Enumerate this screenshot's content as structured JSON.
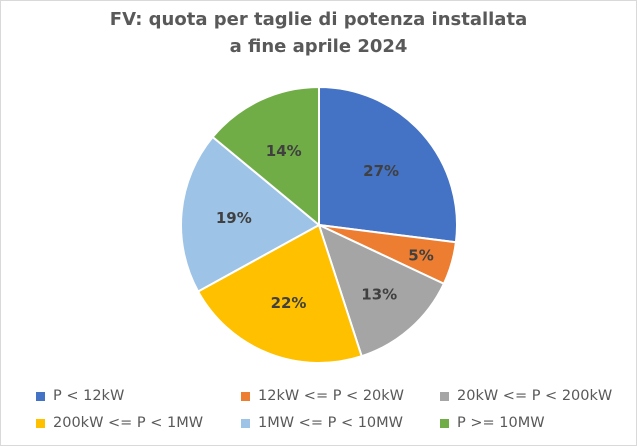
{
  "title": {
    "line1": "FV: quota per taglie di potenza installata",
    "line2": "a fine aprile 2024"
  },
  "chart_data": {
    "type": "pie",
    "title": "FV: quota per taglie di potenza installata a fine aprile 2024",
    "categories": [
      "P < 12kW",
      "12kW <= P < 20kW",
      "20kW <= P < 200kW",
      "200kW <= P < 1MW",
      "1MW <= P < 10MW",
      "P >= 10MW"
    ],
    "values": [
      27,
      5,
      13,
      22,
      19,
      14
    ],
    "data_labels": [
      "27%",
      "5%",
      "13%",
      "22%",
      "19%",
      "14%"
    ],
    "colors": [
      "#4472c4",
      "#ed7d31",
      "#a5a5a5",
      "#ffc000",
      "#9dc3e6",
      "#70ad47"
    ],
    "legend": "bottom",
    "start": "12 o'clock",
    "direction": "clockwise"
  },
  "legend": [
    {
      "label": "P < 12kW",
      "color": "#4472c4"
    },
    {
      "label": "12kW <= P < 20kW",
      "color": "#ed7d31"
    },
    {
      "label": "20kW <= P < 200kW",
      "color": "#a5a5a5"
    },
    {
      "label": "200kW <= P < 1MW",
      "color": "#ffc000"
    },
    {
      "label": "1MW <= P < 10MW",
      "color": "#9dc3e6"
    },
    {
      "label": "P >= 10MW",
      "color": "#70ad47"
    }
  ]
}
